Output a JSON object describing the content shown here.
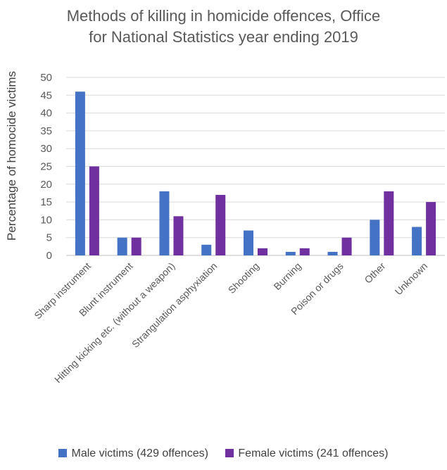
{
  "chart_data": {
    "type": "bar",
    "title_lines": [
      "Methods of killing in homicide offences, Office",
      "for National Statistics year ending 2019"
    ],
    "xlabel": "",
    "ylabel": "Percentage of homocide victims",
    "ylim": [
      0,
      50
    ],
    "yticks": [
      0,
      5,
      10,
      15,
      20,
      25,
      30,
      35,
      40,
      45,
      50
    ],
    "grid": true,
    "legend_position": "bottom",
    "categories": [
      "Sharp  instrument",
      "Blunt instrument",
      "Hitting kicking etc. (without a weapon)",
      "Strangulation asphyxiation",
      "Shooting",
      "Burning",
      "Poison or drugs",
      "Other",
      "Unknown"
    ],
    "series": [
      {
        "name": "Male victims (429 offences)",
        "color": "#4472C4",
        "values": [
          46,
          5,
          18,
          3,
          7,
          1,
          1,
          10,
          8
        ]
      },
      {
        "name": "Female victims (241 offences)",
        "color": "#7030A0",
        "values": [
          25,
          5,
          11,
          17,
          2,
          2,
          5,
          18,
          15
        ]
      }
    ]
  }
}
